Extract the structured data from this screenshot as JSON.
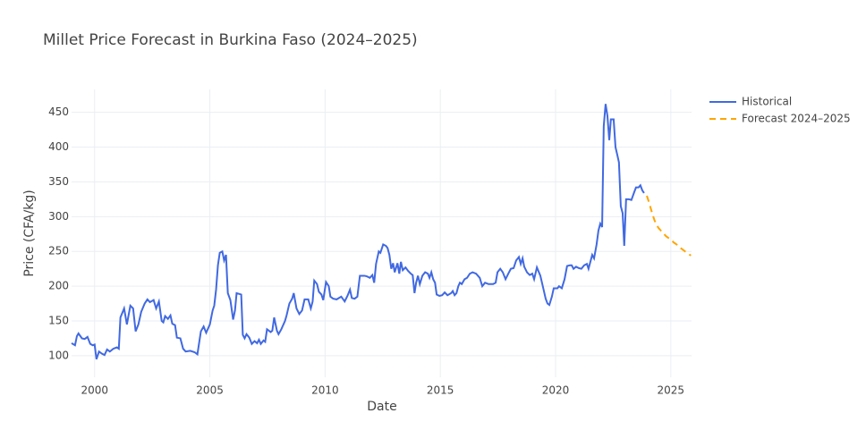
{
  "chart_data": {
    "type": "line",
    "title": "Millet Price Forecast in Burkina Faso (2024–2025)",
    "x_label": "Date",
    "y_label": "Price (CFA/kg)",
    "xlim": [
      1999.0,
      2025.9
    ],
    "ylim": [
      69,
      483
    ],
    "xticks": [
      2000,
      2005,
      2010,
      2015,
      2020,
      2025
    ],
    "yticks": [
      100,
      150,
      200,
      250,
      300,
      350,
      400,
      450
    ],
    "grid": true,
    "legend": "outside-top-right",
    "series": [
      {
        "name": "Historical",
        "color": "#4169e1",
        "dash": false,
        "x": [
          1999.0,
          1999.15,
          1999.23,
          1999.3,
          1999.45,
          1999.57,
          1999.69,
          1999.81,
          1999.92,
          2000.0,
          2000.08,
          2000.19,
          2000.31,
          2000.43,
          2000.54,
          2000.66,
          2000.81,
          2000.97,
          2001.05,
          2001.12,
          2001.28,
          2001.4,
          2001.55,
          2001.67,
          2001.78,
          2001.9,
          2002.02,
          2002.17,
          2002.29,
          2002.4,
          2002.56,
          2002.67,
          2002.79,
          2002.91,
          2002.98,
          2003.06,
          2003.18,
          2003.29,
          2003.37,
          2003.49,
          2003.57,
          2003.72,
          2003.84,
          2003.95,
          2004.15,
          2004.34,
          2004.46,
          2004.61,
          2004.73,
          2004.84,
          2005.0,
          2005.12,
          2005.19,
          2005.27,
          2005.35,
          2005.43,
          2005.54,
          2005.62,
          2005.7,
          2005.78,
          2005.89,
          2006.01,
          2006.09,
          2006.16,
          2006.36,
          2006.43,
          2006.51,
          2006.59,
          2006.71,
          2006.82,
          2006.94,
          2007.05,
          2007.13,
          2007.21,
          2007.33,
          2007.4,
          2007.48,
          2007.64,
          2007.71,
          2007.79,
          2007.91,
          2007.98,
          2008.1,
          2008.26,
          2008.33,
          2008.45,
          2008.57,
          2008.64,
          2008.76,
          2008.88,
          2009.0,
          2009.11,
          2009.27,
          2009.38,
          2009.46,
          2009.53,
          2009.65,
          2009.73,
          2009.84,
          2009.92,
          2010.04,
          2010.16,
          2010.23,
          2010.35,
          2010.5,
          2010.7,
          2010.85,
          2010.97,
          2011.08,
          2011.16,
          2011.28,
          2011.4,
          2011.51,
          2011.71,
          2011.82,
          2011.94,
          2012.05,
          2012.13,
          2012.21,
          2012.33,
          2012.4,
          2012.52,
          2012.64,
          2012.71,
          2012.79,
          2012.87,
          2012.95,
          2013.02,
          2013.14,
          2013.22,
          2013.29,
          2013.37,
          2013.49,
          2013.6,
          2013.72,
          2013.8,
          2013.88,
          2013.95,
          2014.03,
          2014.11,
          2014.22,
          2014.34,
          2014.46,
          2014.53,
          2014.61,
          2014.69,
          2014.77,
          2014.84,
          2014.96,
          2015.08,
          2015.19,
          2015.31,
          2015.47,
          2015.54,
          2015.62,
          2015.7,
          2015.78,
          2015.85,
          2015.93,
          2016.05,
          2016.16,
          2016.28,
          2016.4,
          2016.55,
          2016.71,
          2016.82,
          2016.94,
          2017.09,
          2017.29,
          2017.4,
          2017.48,
          2017.6,
          2017.71,
          2017.83,
          2017.95,
          2018.06,
          2018.18,
          2018.29,
          2018.41,
          2018.49,
          2018.57,
          2018.64,
          2018.76,
          2018.88,
          2018.99,
          2019.07,
          2019.19,
          2019.34,
          2019.46,
          2019.57,
          2019.65,
          2019.73,
          2019.84,
          2019.92,
          2020.08,
          2020.15,
          2020.27,
          2020.39,
          2020.5,
          2020.62,
          2020.7,
          2020.78,
          2020.89,
          2021.01,
          2021.12,
          2021.24,
          2021.36,
          2021.43,
          2021.51,
          2021.59,
          2021.67,
          2021.78,
          2021.86,
          2021.94,
          2022.02,
          2022.09,
          2022.17,
          2022.25,
          2022.33,
          2022.4,
          2022.52,
          2022.6,
          2022.67,
          2022.75,
          2022.83,
          2022.91,
          2022.98,
          2023.06,
          2023.18,
          2023.29,
          2023.41,
          2023.49,
          2023.6,
          2023.68,
          2023.76,
          2023.84
        ],
        "values": [
          118,
          115,
          128,
          132,
          125,
          124,
          127,
          117,
          115,
          116,
          95,
          106,
          103,
          101,
          109,
          106,
          110,
          112,
          110,
          155,
          168,
          145,
          172,
          168,
          135,
          145,
          163,
          175,
          181,
          177,
          180,
          168,
          178,
          150,
          148,
          157,
          153,
          158,
          146,
          144,
          126,
          125,
          110,
          106,
          107,
          105,
          102,
          135,
          142,
          133,
          145,
          165,
          172,
          195,
          230,
          248,
          250,
          237,
          245,
          190,
          180,
          152,
          165,
          190,
          188,
          130,
          125,
          131,
          126,
          117,
          121,
          118,
          123,
          117,
          122,
          120,
          138,
          134,
          136,
          155,
          136,
          131,
          138,
          150,
          158,
          175,
          182,
          190,
          168,
          160,
          165,
          181,
          181,
          168,
          178,
          208,
          203,
          192,
          188,
          180,
          206,
          200,
          185,
          182,
          181,
          185,
          178,
          186,
          195,
          183,
          182,
          185,
          215,
          215,
          214,
          212,
          216,
          205,
          232,
          250,
          248,
          260,
          258,
          255,
          245,
          225,
          233,
          220,
          233,
          218,
          235,
          223,
          227,
          222,
          218,
          216,
          190,
          205,
          215,
          203,
          215,
          220,
          218,
          212,
          220,
          210,
          205,
          188,
          186,
          187,
          191,
          187,
          190,
          193,
          187,
          190,
          200,
          205,
          203,
          210,
          212,
          218,
          220,
          218,
          212,
          200,
          205,
          203,
          203,
          205,
          220,
          225,
          220,
          210,
          218,
          225,
          226,
          237,
          242,
          232,
          240,
          228,
          220,
          216,
          218,
          210,
          227,
          215,
          198,
          182,
          175,
          173,
          185,
          197,
          197,
          200,
          197,
          210,
          229,
          230,
          230,
          225,
          228,
          226,
          225,
          230,
          232,
          225,
          235,
          245,
          240,
          260,
          280,
          290,
          285,
          430,
          462,
          445,
          410,
          440,
          440,
          400,
          390,
          378,
          315,
          305,
          258,
          325,
          325,
          324,
          335,
          342,
          342,
          345,
          338,
          334
        ]
      },
      {
        "name": "Forecast 2024–2025",
        "color": "#ffa500",
        "dash": true,
        "x": [
          2023.96,
          2024.04,
          2024.12,
          2024.21,
          2024.29,
          2024.37,
          2024.46,
          2024.54,
          2024.62,
          2024.71,
          2024.79,
          2024.87,
          2024.96,
          2025.04,
          2025.12,
          2025.21,
          2025.29,
          2025.37,
          2025.46,
          2025.54,
          2025.62,
          2025.71,
          2025.79,
          2025.87
        ],
        "values": [
          330,
          322,
          313,
          303,
          295,
          289,
          284,
          281,
          278,
          275,
          272,
          270,
          268,
          266,
          263,
          261,
          259,
          256,
          254,
          252,
          250,
          248,
          246,
          244
        ]
      }
    ]
  }
}
